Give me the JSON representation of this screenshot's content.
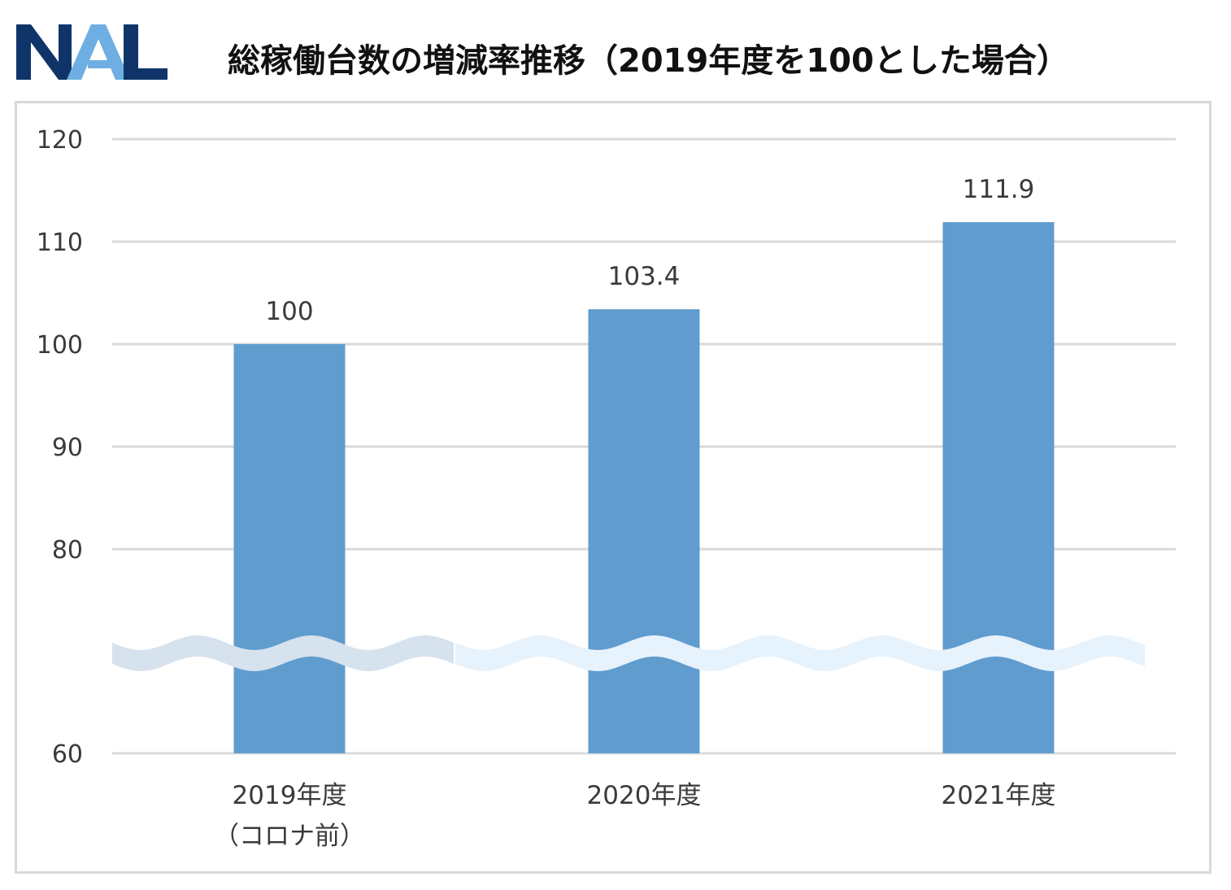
{
  "logo": {
    "text": "NAL",
    "colors": {
      "dark": "#0f3469",
      "light": "#6faee3"
    }
  },
  "title": "総稼働台数の増減率推移（2019年度を100とした場合）",
  "chart_data": {
    "type": "bar",
    "categories": [
      [
        "2019年度",
        "（コロナ前）"
      ],
      [
        "2020年度"
      ],
      [
        "2021年度"
      ]
    ],
    "values": [
      100,
      103.4,
      111.9
    ],
    "data_labels": [
      "100",
      "103.4",
      "111.9"
    ],
    "y_ticks": [
      "120",
      "110",
      "100",
      "90",
      "80",
      "60"
    ],
    "y_tick_values": [
      120,
      110,
      100,
      90,
      80,
      60
    ],
    "ylim": [
      60,
      120
    ],
    "axis_break": "between 60 and 80",
    "grid": true,
    "legend": "none",
    "bar_color": "#609cce"
  }
}
